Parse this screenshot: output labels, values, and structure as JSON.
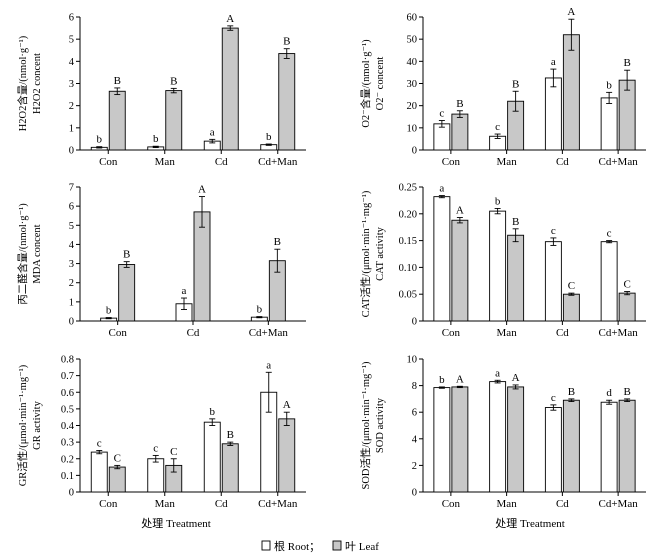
{
  "series_names": [
    "Root",
    "Leaf"
  ],
  "colors": {
    "root": "#ffffff",
    "leaf": "#c8c8c8",
    "axis": "#000000"
  },
  "xlabel": "处理 Treatment",
  "legend": {
    "root_label": "根 Root；",
    "leaf_label": "叶 Leaf"
  },
  "chart_data": [
    {
      "id": "h2o2",
      "type": "bar",
      "ylabel_cn": "H2O2含量/(nmol·g⁻¹)",
      "ylabel_en": "H2O2 concent",
      "categories": [
        "Con",
        "Man",
        "Cd",
        "Cd+Man"
      ],
      "ylim": [
        0,
        6
      ],
      "yticks": [
        0,
        1,
        2,
        3,
        4,
        5,
        6
      ],
      "decimals": 0,
      "series": [
        {
          "name": "Root",
          "values": [
            0.12,
            0.14,
            0.4,
            0.24
          ],
          "errors": [
            0.03,
            0.03,
            0.08,
            0.03
          ],
          "letters": [
            "b",
            "b",
            "a",
            "b"
          ]
        },
        {
          "name": "Leaf",
          "values": [
            2.65,
            2.68,
            5.5,
            4.35
          ],
          "errors": [
            0.15,
            0.1,
            0.1,
            0.22
          ],
          "letters": [
            "B",
            "B",
            "A",
            "B"
          ]
        }
      ]
    },
    {
      "id": "o2",
      "type": "bar",
      "ylabel_cn": "O2⁻含量/(nmol·g⁻¹)",
      "ylabel_en": "O2⁻ concent",
      "categories": [
        "Con",
        "Man",
        "Cd",
        "Cd+Man"
      ],
      "ylim": [
        0,
        60
      ],
      "yticks": [
        0,
        10,
        20,
        30,
        40,
        50,
        60
      ],
      "decimals": 0,
      "series": [
        {
          "name": "Root",
          "values": [
            11.8,
            6.2,
            32.5,
            23.5
          ],
          "errors": [
            1.5,
            1.0,
            4.0,
            2.5
          ],
          "letters": [
            "c",
            "c",
            "a",
            "b"
          ]
        },
        {
          "name": "Leaf",
          "values": [
            16.2,
            22.0,
            52.0,
            31.5
          ],
          "errors": [
            1.5,
            4.5,
            7.0,
            4.5
          ],
          "letters": [
            "B",
            "B",
            "A",
            "B"
          ]
        }
      ]
    },
    {
      "id": "mda",
      "type": "bar",
      "ylabel_cn": "丙二醛含量/(nmol·g⁻¹)",
      "ylabel_en": "MDA concent",
      "categories": [
        "Con",
        "Cd",
        "Cd+Man"
      ],
      "ylim": [
        0,
        7
      ],
      "yticks": [
        0,
        1,
        2,
        3,
        4,
        5,
        6,
        7
      ],
      "decimals": 0,
      "series": [
        {
          "name": "Root",
          "values": [
            0.15,
            0.9,
            0.2
          ],
          "errors": [
            0.03,
            0.3,
            0.03
          ],
          "letters": [
            "b",
            "a",
            "b"
          ]
        },
        {
          "name": "Leaf",
          "values": [
            2.95,
            5.7,
            3.15
          ],
          "errors": [
            0.15,
            0.8,
            0.6
          ],
          "letters": [
            "B",
            "A",
            "B"
          ]
        }
      ]
    },
    {
      "id": "cat",
      "type": "bar",
      "ylabel_cn": "CAT活性/(μmol·min⁻¹·mg⁻¹)",
      "ylabel_en": "CAT activity",
      "categories": [
        "Con",
        "Man",
        "Cd",
        "Cd+Man"
      ],
      "ylim": [
        0,
        0.25
      ],
      "yticks": [
        0,
        0.05,
        0.1,
        0.15,
        0.2,
        0.25
      ],
      "decimals": 2,
      "series": [
        {
          "name": "Root",
          "values": [
            0.232,
            0.205,
            0.148,
            0.148
          ],
          "errors": [
            0.002,
            0.005,
            0.007,
            0.002
          ],
          "letters": [
            "a",
            "b",
            "c",
            "c"
          ]
        },
        {
          "name": "Leaf",
          "values": [
            0.188,
            0.16,
            0.05,
            0.052
          ],
          "errors": [
            0.005,
            0.012,
            0.002,
            0.003
          ],
          "letters": [
            "A",
            "B",
            "C",
            "C"
          ]
        }
      ]
    },
    {
      "id": "gr",
      "type": "bar",
      "ylabel_cn": "GR活性/(μmol·min⁻¹·mg⁻¹)",
      "ylabel_en": "GR activity",
      "categories": [
        "Con",
        "Man",
        "Cd",
        "Cd+Man"
      ],
      "ylim": [
        0,
        0.8
      ],
      "yticks": [
        0,
        0.1,
        0.2,
        0.3,
        0.4,
        0.5,
        0.6,
        0.7,
        0.8
      ],
      "decimals": 1,
      "series": [
        {
          "name": "Root",
          "values": [
            0.24,
            0.2,
            0.42,
            0.6
          ],
          "errors": [
            0.01,
            0.02,
            0.02,
            0.12
          ],
          "letters": [
            "c",
            "c",
            "b",
            "a"
          ]
        },
        {
          "name": "Leaf",
          "values": [
            0.15,
            0.16,
            0.29,
            0.44
          ],
          "errors": [
            0.01,
            0.04,
            0.01,
            0.04
          ],
          "letters": [
            "C",
            "C",
            "B",
            "A"
          ]
        }
      ]
    },
    {
      "id": "sod",
      "type": "bar",
      "ylabel_cn": "SOD活性/(μmol·min⁻¹·mg⁻¹)",
      "ylabel_en": "SOD activity",
      "categories": [
        "Con",
        "Man",
        "Cd",
        "Cd+Man"
      ],
      "ylim": [
        0,
        10
      ],
      "yticks": [
        0,
        2,
        4,
        6,
        8,
        10
      ],
      "decimals": 0,
      "series": [
        {
          "name": "Root",
          "values": [
            7.85,
            8.3,
            6.35,
            6.75
          ],
          "errors": [
            0.05,
            0.1,
            0.2,
            0.15
          ],
          "letters": [
            "b",
            "a",
            "c",
            "d"
          ]
        },
        {
          "name": "Leaf",
          "values": [
            7.9,
            7.9,
            6.9,
            6.9
          ],
          "errors": [
            0.05,
            0.15,
            0.1,
            0.1
          ],
          "letters": [
            "A",
            "A",
            "B",
            "B"
          ]
        }
      ]
    }
  ]
}
